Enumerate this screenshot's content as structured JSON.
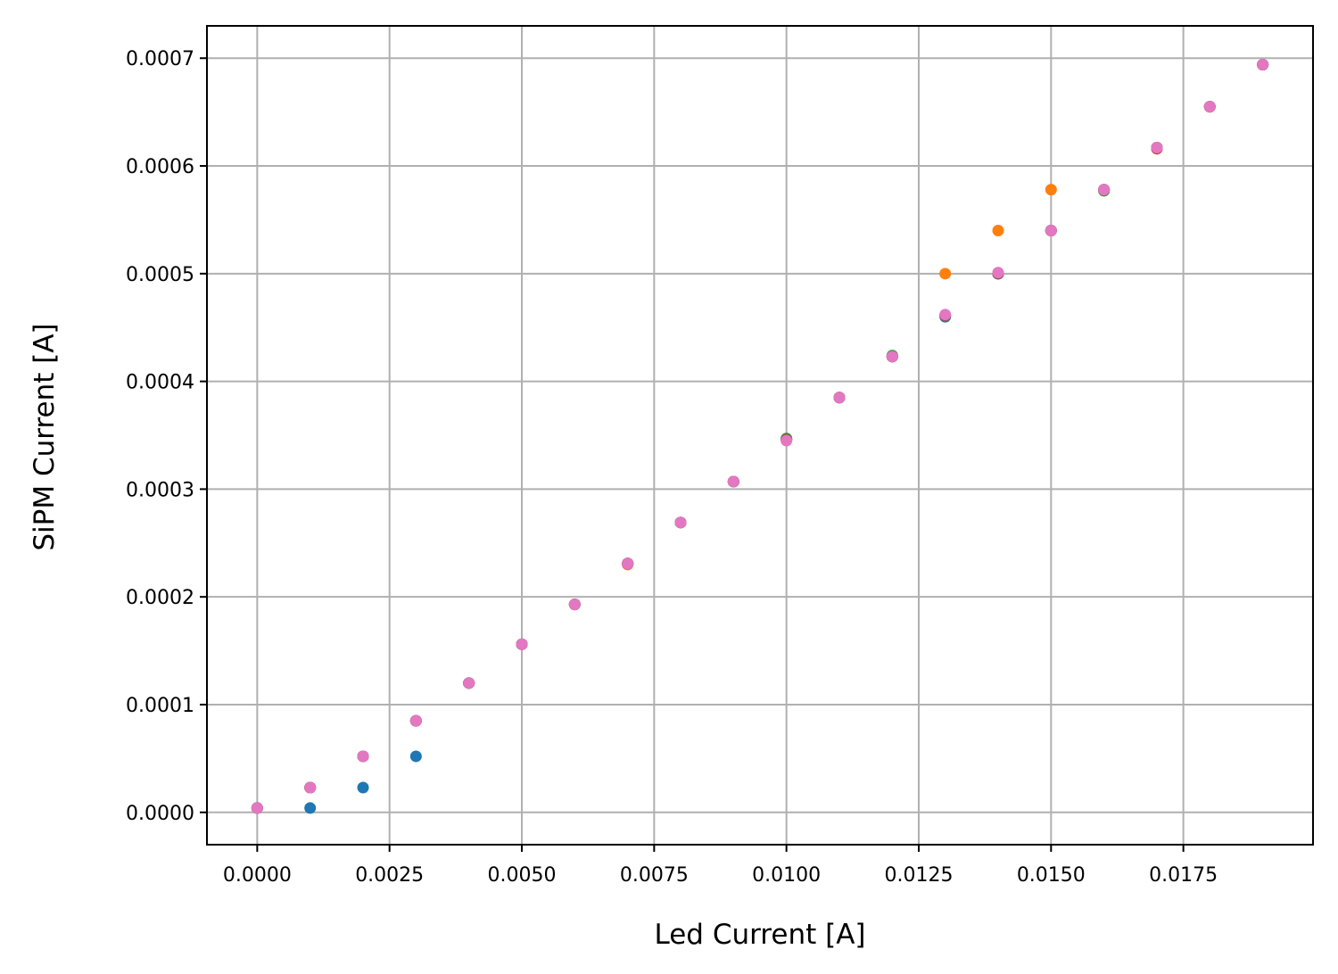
{
  "chart_data": {
    "type": "scatter",
    "title": "",
    "xlabel": "Led Current [A]",
    "ylabel": "SiPM Current [A]",
    "xlim": [
      -0.00095,
      0.01995
    ],
    "ylim": [
      -3e-05,
      0.00073
    ],
    "grid": true,
    "xticks": [
      {
        "value": 0.0,
        "label": "0.0000"
      },
      {
        "value": 0.0025,
        "label": "0.0025"
      },
      {
        "value": 0.005,
        "label": "0.0050"
      },
      {
        "value": 0.0075,
        "label": "0.0075"
      },
      {
        "value": 0.01,
        "label": "0.0100"
      },
      {
        "value": 0.0125,
        "label": "0.0125"
      },
      {
        "value": 0.015,
        "label": "0.0150"
      },
      {
        "value": 0.0175,
        "label": "0.0175"
      }
    ],
    "yticks": [
      {
        "value": 0.0,
        "label": "0.0000"
      },
      {
        "value": 0.0001,
        "label": "0.0001"
      },
      {
        "value": 0.0002,
        "label": "0.0002"
      },
      {
        "value": 0.0003,
        "label": "0.0003"
      },
      {
        "value": 0.0004,
        "label": "0.0004"
      },
      {
        "value": 0.0005,
        "label": "0.0005"
      },
      {
        "value": 0.0006,
        "label": "0.0006"
      },
      {
        "value": 0.0007,
        "label": "0.0007"
      }
    ],
    "x": [
      0.0,
      0.001,
      0.002,
      0.003,
      0.004,
      0.005,
      0.006,
      0.007,
      0.008,
      0.009,
      0.01,
      0.011,
      0.012,
      0.013,
      0.014,
      0.015,
      0.016,
      0.017,
      0.018,
      0.019
    ],
    "series": [
      {
        "color": "#1f77b4",
        "values": [
          4e-06,
          4e-06,
          2.3e-05,
          5.2e-05,
          0.00012,
          0.000156,
          0.000193,
          0.000231,
          0.000269,
          0.000307,
          0.000346,
          0.000385,
          0.000423,
          0.00046,
          0.0005,
          0.00054,
          0.000577,
          0.000617,
          0.000655,
          0.000694
        ]
      },
      {
        "color": "#ff7f0e",
        "values": [
          4e-06,
          2.3e-05,
          5.2e-05,
          8.5e-05,
          0.00012,
          0.000156,
          0.000193,
          0.00023,
          0.000269,
          0.000307,
          0.000346,
          0.000385,
          0.000423,
          0.0005,
          0.00054,
          0.000578,
          0.000577,
          0.000617,
          0.000655,
          0.000694
        ]
      },
      {
        "color": "#2ca02c",
        "values": [
          4e-06,
          2.3e-05,
          5.2e-05,
          8.5e-05,
          0.00012,
          0.000156,
          0.000193,
          0.000231,
          0.000269,
          0.000307,
          0.000347,
          0.000385,
          0.000424,
          0.000461,
          0.0005,
          0.00054,
          0.000577,
          0.000617,
          0.000655,
          0.000694
        ]
      },
      {
        "color": "#d62728",
        "values": [
          4e-06,
          2.3e-05,
          5.2e-05,
          8.5e-05,
          0.00012,
          0.000156,
          0.000193,
          0.000231,
          0.000269,
          0.000307,
          0.000346,
          0.000385,
          0.000423,
          0.000461,
          0.0005,
          0.00054,
          0.000578,
          0.000616,
          0.000655,
          0.000694
        ]
      },
      {
        "color": "#9467bd",
        "values": [
          4e-06,
          2.3e-05,
          5.2e-05,
          8.5e-05,
          0.00012,
          0.000156,
          0.000193,
          0.000231,
          0.000269,
          0.000307,
          0.000346,
          0.000385,
          0.000423,
          0.000461,
          0.0005,
          0.00054,
          0.000578,
          0.000617,
          0.000655,
          0.000694
        ]
      },
      {
        "color": "#8c564b",
        "values": [
          4e-06,
          2.3e-05,
          5.2e-05,
          8.5e-05,
          0.00012,
          0.000156,
          0.000193,
          0.000231,
          0.000269,
          0.000307,
          0.000346,
          0.000385,
          0.000423,
          0.000461,
          0.0005,
          0.00054,
          0.000578,
          0.000617,
          0.000655,
          0.000694
        ]
      },
      {
        "color": "#e377c2",
        "values": [
          4e-06,
          2.3e-05,
          5.2e-05,
          8.5e-05,
          0.00012,
          0.000156,
          0.000193,
          0.000231,
          0.000269,
          0.000307,
          0.000345,
          0.000385,
          0.000423,
          0.000462,
          0.000501,
          0.00054,
          0.000578,
          0.000617,
          0.000655,
          0.000694
        ]
      }
    ],
    "colors": {
      "grid": "#b0b0b0",
      "frame": "#000000"
    }
  }
}
